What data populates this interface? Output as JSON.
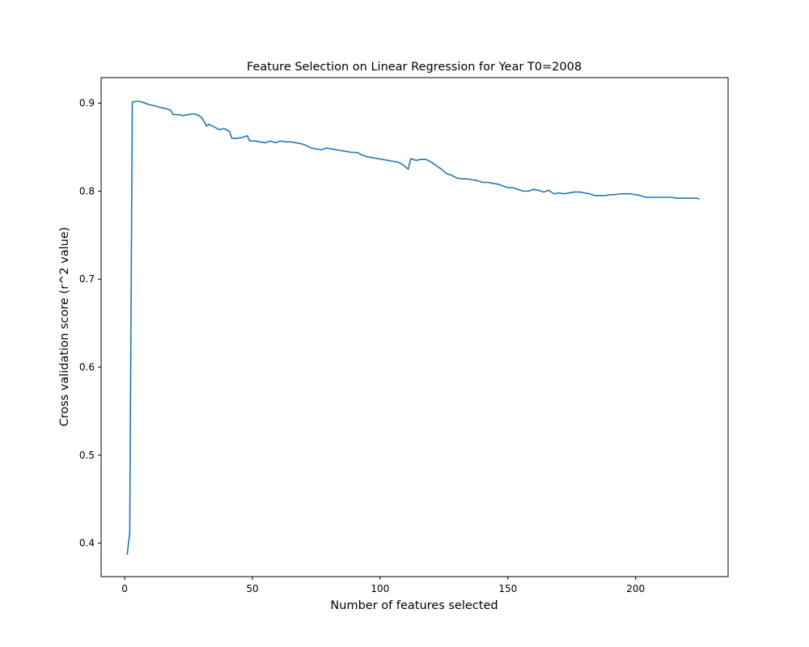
{
  "chart_data": {
    "type": "line",
    "title": "Feature Selection on Linear Regression for Year T0=2008",
    "xlabel": "Number of features selected",
    "ylabel": "Cross validation score (r^2 value)",
    "xlim": [
      -9.2,
      236.2
    ],
    "ylim": [
      0.362,
      0.929
    ],
    "xticks": [
      0,
      50,
      100,
      150,
      200
    ],
    "xtick_labels": [
      "0",
      "50",
      "100",
      "150",
      "200"
    ],
    "yticks": [
      0.4,
      0.5,
      0.6,
      0.7,
      0.8,
      0.9
    ],
    "ytick_labels": [
      "0.4",
      "0.5",
      "0.6",
      "0.7",
      "0.8",
      "0.9"
    ],
    "grid": false,
    "legend": "none",
    "line_color": "#1f77b4",
    "series": [
      {
        "points": [
          [
            1,
            0.387
          ],
          [
            2,
            0.412
          ],
          [
            3,
            0.901
          ],
          [
            4,
            0.902
          ],
          [
            6,
            0.902
          ],
          [
            8,
            0.9
          ],
          [
            10,
            0.898
          ],
          [
            12,
            0.897
          ],
          [
            14,
            0.895
          ],
          [
            16,
            0.894
          ],
          [
            18,
            0.892
          ],
          [
            19,
            0.887
          ],
          [
            21,
            0.887
          ],
          [
            23,
            0.886
          ],
          [
            25,
            0.887
          ],
          [
            27,
            0.888
          ],
          [
            29,
            0.886
          ],
          [
            30,
            0.884
          ],
          [
            31,
            0.88
          ],
          [
            32,
            0.874
          ],
          [
            33,
            0.876
          ],
          [
            35,
            0.873
          ],
          [
            37,
            0.87
          ],
          [
            39,
            0.871
          ],
          [
            41,
            0.868
          ],
          [
            42,
            0.86
          ],
          [
            44,
            0.86
          ],
          [
            46,
            0.861
          ],
          [
            48,
            0.863
          ],
          [
            49,
            0.857
          ],
          [
            51,
            0.857
          ],
          [
            53,
            0.856
          ],
          [
            55,
            0.855
          ],
          [
            57,
            0.857
          ],
          [
            59,
            0.855
          ],
          [
            61,
            0.857
          ],
          [
            63,
            0.856
          ],
          [
            65,
            0.856
          ],
          [
            67,
            0.855
          ],
          [
            69,
            0.854
          ],
          [
            71,
            0.852
          ],
          [
            73,
            0.849
          ],
          [
            75,
            0.848
          ],
          [
            77,
            0.847
          ],
          [
            79,
            0.849
          ],
          [
            81,
            0.848
          ],
          [
            83,
            0.847
          ],
          [
            85,
            0.846
          ],
          [
            87,
            0.845
          ],
          [
            89,
            0.844
          ],
          [
            91,
            0.844
          ],
          [
            93,
            0.841
          ],
          [
            95,
            0.839
          ],
          [
            97,
            0.838
          ],
          [
            99,
            0.837
          ],
          [
            101,
            0.836
          ],
          [
            103,
            0.835
          ],
          [
            105,
            0.834
          ],
          [
            107,
            0.833
          ],
          [
            109,
            0.83
          ],
          [
            111,
            0.825
          ],
          [
            112,
            0.837
          ],
          [
            114,
            0.835
          ],
          [
            116,
            0.836
          ],
          [
            118,
            0.836
          ],
          [
            120,
            0.833
          ],
          [
            122,
            0.829
          ],
          [
            124,
            0.825
          ],
          [
            126,
            0.82
          ],
          [
            128,
            0.818
          ],
          [
            130,
            0.815
          ],
          [
            132,
            0.814
          ],
          [
            134,
            0.814
          ],
          [
            136,
            0.813
          ],
          [
            138,
            0.812
          ],
          [
            140,
            0.81
          ],
          [
            142,
            0.81
          ],
          [
            144,
            0.809
          ],
          [
            146,
            0.808
          ],
          [
            148,
            0.806
          ],
          [
            150,
            0.804
          ],
          [
            152,
            0.804
          ],
          [
            154,
            0.802
          ],
          [
            156,
            0.8
          ],
          [
            158,
            0.8
          ],
          [
            160,
            0.802
          ],
          [
            162,
            0.801
          ],
          [
            164,
            0.799
          ],
          [
            166,
            0.801
          ],
          [
            168,
            0.797
          ],
          [
            170,
            0.798
          ],
          [
            172,
            0.797
          ],
          [
            174,
            0.798
          ],
          [
            176,
            0.799
          ],
          [
            178,
            0.799
          ],
          [
            180,
            0.798
          ],
          [
            182,
            0.797
          ],
          [
            184,
            0.795
          ],
          [
            186,
            0.795
          ],
          [
            188,
            0.795
          ],
          [
            190,
            0.796
          ],
          [
            192,
            0.796
          ],
          [
            194,
            0.797
          ],
          [
            196,
            0.797
          ],
          [
            198,
            0.797
          ],
          [
            200,
            0.796
          ],
          [
            202,
            0.795
          ],
          [
            204,
            0.793
          ],
          [
            206,
            0.793
          ],
          [
            208,
            0.793
          ],
          [
            210,
            0.793
          ],
          [
            212,
            0.793
          ],
          [
            214,
            0.793
          ],
          [
            216,
            0.792
          ],
          [
            218,
            0.792
          ],
          [
            220,
            0.792
          ],
          [
            222,
            0.792
          ],
          [
            224,
            0.792
          ],
          [
            225,
            0.791
          ]
        ]
      }
    ]
  }
}
